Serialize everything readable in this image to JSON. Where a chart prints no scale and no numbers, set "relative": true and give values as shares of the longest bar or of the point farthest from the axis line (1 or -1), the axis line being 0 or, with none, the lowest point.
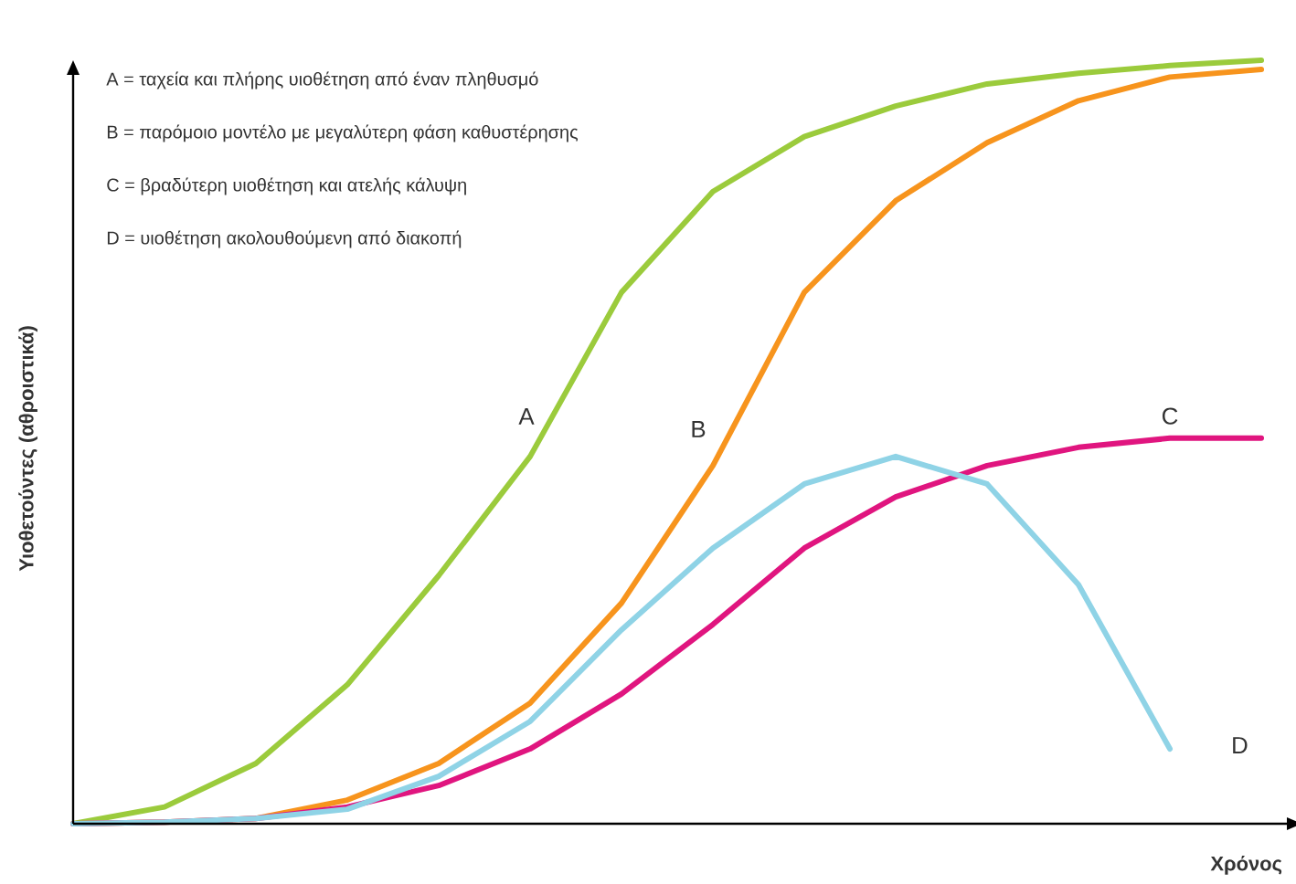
{
  "chart_data": {
    "type": "line",
    "relative": true,
    "xlabel": "Χρόνος",
    "ylabel": "Υιοθετούντες (αθροιστικά)",
    "categories": [
      null,
      null,
      null,
      null,
      null,
      null,
      null,
      null,
      null,
      null,
      null,
      null,
      null,
      null
    ],
    "annotations": [
      "A = ταχεία και πλήρης υιοθέτηση από έναν πληθυσμό",
      "B = παρόμοιο μοντέλο με μεγαλύτερη φάση καθυστέρησης",
      "C = βραδύτερη υιοθέτηση και ατελής κάλυψη",
      "D = υιοθέτηση ακολουθούμενη από διακοπή"
    ],
    "series": [
      {
        "name": "A",
        "color": "#9bcb3c",
        "values": [
          0,
          0.022,
          0.079,
          0.182,
          0.325,
          0.481,
          0.696,
          0.828,
          0.9,
          0.94,
          0.969,
          0.983,
          0.993,
          1
        ]
      },
      {
        "name": "B",
        "color": "#f7941d",
        "values": [
          0,
          0.002,
          0.007,
          0.031,
          0.079,
          0.158,
          0.289,
          0.469,
          0.696,
          0.816,
          0.892,
          0.947,
          0.978,
          0.988
        ]
      },
      {
        "name": "C",
        "color": "#e0157f",
        "values": [
          0,
          0.002,
          0.007,
          0.022,
          0.05,
          0.098,
          0.17,
          0.261,
          0.361,
          0.428,
          0.469,
          0.493,
          0.505,
          0.505
        ]
      },
      {
        "name": "D",
        "color": "#8fd3e6",
        "values": [
          0,
          0.002,
          0.007,
          0.019,
          0.062,
          0.134,
          0.254,
          0.361,
          0.445,
          0.481,
          0.445,
          0.313,
          0.098,
          null
        ]
      }
    ]
  }
}
